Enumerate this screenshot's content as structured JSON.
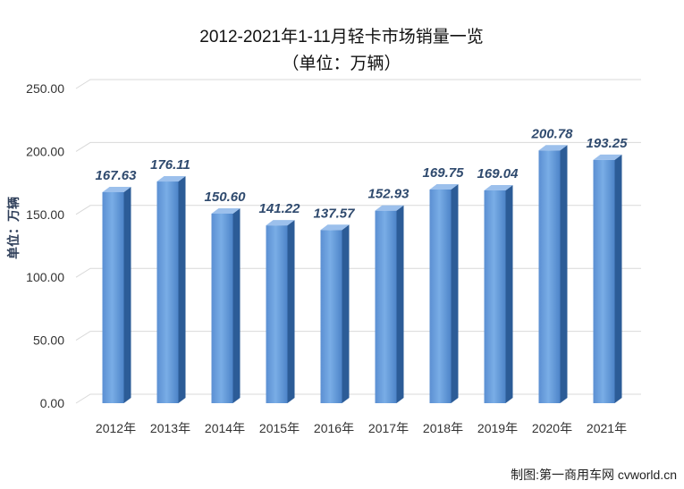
{
  "chart_data": {
    "type": "bar",
    "title": "2012-2021年1-11月轻卡市场销量一览",
    "subtitle": "（单位：万辆）",
    "ylabel": "单位：万辆",
    "xlabel": "",
    "categories": [
      "2012年",
      "2013年",
      "2014年",
      "2015年",
      "2016年",
      "2017年",
      "2018年",
      "2019年",
      "2020年",
      "2021年"
    ],
    "values": [
      167.63,
      176.11,
      150.6,
      141.22,
      137.57,
      152.93,
      169.75,
      169.04,
      200.78,
      193.25
    ],
    "data_labels": [
      "167.63",
      "176.11",
      "150.60",
      "141.22",
      "137.57",
      "152.93",
      "169.75",
      "169.04",
      "200.78",
      "193.25"
    ],
    "y_ticks": [
      "0.00",
      "50.00",
      "100.00",
      "150.00",
      "200.00",
      "250.00"
    ],
    "ylim": [
      0,
      250
    ],
    "grid": true,
    "legend": "none",
    "style": "3d-column"
  },
  "source_note": "制图:第一商用车网 cvworld.cn",
  "colors": {
    "bar_front_top": "#6fa3e0",
    "bar_front_bottom": "#4a7fc4",
    "bar_side": "#2c5c97",
    "bar_top": "#9cc0ec",
    "data_label": "#2f4a6e",
    "grid": "#d9d9d9"
  }
}
